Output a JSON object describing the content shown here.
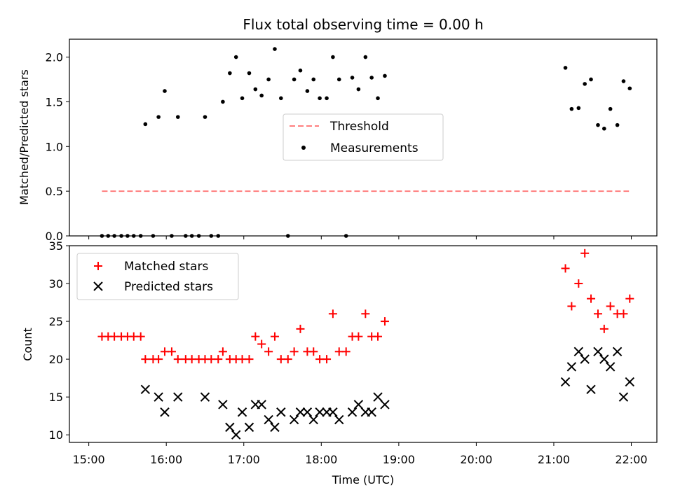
{
  "chart_data": [
    {
      "type": "scatter",
      "title": "Flux total observing time = 0.00 h",
      "xlabel": "",
      "ylabel": "Matched/Predicted stars",
      "ylim": [
        0,
        2.2
      ],
      "xlim_hours": [
        14.75,
        22.33
      ],
      "yticks": [
        "0.0",
        "0.5",
        "1.0",
        "1.5",
        "2.0"
      ],
      "ytick_values": [
        0,
        0.5,
        1.0,
        1.5,
        2.0
      ],
      "xticks_shown": false,
      "grid": false,
      "legend_placement": "center",
      "threshold": {
        "name": "Threshold",
        "color": "#ff7f7f",
        "style": "dashed",
        "y": 0.5,
        "x_start": 15.17,
        "x_end": 21.97
      },
      "series": [
        {
          "name": "Measurements",
          "color": "#000000",
          "marker": "dot",
          "x": [
            15.17,
            15.25,
            15.33,
            15.42,
            15.5,
            15.58,
            15.67,
            15.73,
            15.83,
            15.9,
            15.98,
            16.07,
            16.15,
            16.25,
            16.33,
            16.42,
            16.5,
            16.58,
            16.67,
            16.73,
            16.82,
            16.9,
            16.98,
            17.07,
            17.15,
            17.23,
            17.32,
            17.4,
            17.48,
            17.57,
            17.65,
            17.73,
            17.82,
            17.9,
            17.98,
            18.07,
            18.15,
            18.23,
            18.32,
            18.4,
            18.48,
            18.57,
            18.65,
            18.73,
            18.82,
            21.15,
            21.23,
            21.32,
            21.4,
            21.48,
            21.57,
            21.65,
            21.73,
            21.82,
            21.9,
            21.98
          ],
          "y": [
            0,
            0,
            0,
            0,
            0,
            0,
            0,
            1.25,
            0,
            1.33,
            1.62,
            0,
            1.33,
            0,
            0,
            0,
            1.33,
            0,
            0,
            1.5,
            1.82,
            2.0,
            1.54,
            1.82,
            1.64,
            1.57,
            1.75,
            2.09,
            1.54,
            0,
            1.75,
            1.85,
            1.62,
            1.75,
            1.54,
            1.54,
            2.0,
            1.75,
            0,
            1.77,
            1.64,
            2.0,
            1.77,
            1.54,
            1.79,
            1.88,
            1.42,
            1.43,
            1.7,
            1.75,
            1.24,
            1.2,
            1.42,
            1.24,
            1.73,
            1.65
          ]
        }
      ]
    },
    {
      "type": "scatter",
      "title": "",
      "xlabel": "Time (UTC)",
      "ylabel": "Count",
      "ylim": [
        9,
        35
      ],
      "xlim_hours": [
        14.75,
        22.33
      ],
      "yticks": [
        "10",
        "15",
        "20",
        "25",
        "30",
        "35"
      ],
      "ytick_values": [
        10,
        15,
        20,
        25,
        30,
        35
      ],
      "xticks": [
        "15:00",
        "16:00",
        "17:00",
        "18:00",
        "19:00",
        "20:00",
        "21:00",
        "22:00"
      ],
      "xtick_values": [
        15,
        16,
        17,
        18,
        19,
        20,
        21,
        22
      ],
      "grid": false,
      "legend_placement": "upper-left",
      "series": [
        {
          "name": "Matched stars",
          "color": "#ff0000",
          "marker": "plus",
          "x": [
            15.17,
            15.25,
            15.33,
            15.42,
            15.5,
            15.58,
            15.67,
            15.73,
            15.83,
            15.9,
            15.98,
            16.07,
            16.15,
            16.25,
            16.33,
            16.42,
            16.5,
            16.58,
            16.67,
            16.73,
            16.82,
            16.9,
            16.98,
            17.07,
            17.15,
            17.23,
            17.32,
            17.4,
            17.48,
            17.57,
            17.65,
            17.73,
            17.82,
            17.9,
            17.98,
            18.07,
            18.15,
            18.23,
            18.32,
            18.4,
            18.48,
            18.57,
            18.65,
            18.73,
            18.82,
            21.15,
            21.23,
            21.32,
            21.4,
            21.48,
            21.57,
            21.65,
            21.73,
            21.82,
            21.9,
            21.98
          ],
          "y": [
            23,
            23,
            23,
            23,
            23,
            23,
            23,
            20,
            20,
            20,
            21,
            21,
            20,
            20,
            20,
            20,
            20,
            20,
            20,
            21,
            20,
            20,
            20,
            20,
            23,
            22,
            21,
            23,
            20,
            20,
            21,
            24,
            21,
            21,
            20,
            20,
            26,
            21,
            21,
            23,
            23,
            26,
            23,
            23,
            25,
            32,
            27,
            30,
            34,
            28,
            26,
            24,
            27,
            26,
            26,
            28
          ]
        },
        {
          "name": "Predicted stars",
          "color": "#000000",
          "marker": "x",
          "x": [
            15.73,
            15.9,
            15.98,
            16.15,
            16.5,
            16.73,
            16.82,
            16.9,
            16.98,
            17.07,
            17.15,
            17.23,
            17.32,
            17.4,
            17.48,
            17.65,
            17.73,
            17.82,
            17.9,
            17.98,
            18.07,
            18.15,
            18.23,
            18.4,
            18.48,
            18.57,
            18.65,
            18.73,
            18.82,
            21.15,
            21.23,
            21.32,
            21.4,
            21.48,
            21.57,
            21.65,
            21.73,
            21.82,
            21.9,
            21.98
          ],
          "y": [
            16,
            15,
            13,
            15,
            15,
            14,
            11,
            10,
            13,
            11,
            14,
            14,
            12,
            11,
            13,
            12,
            13,
            13,
            12,
            13,
            13,
            13,
            12,
            13,
            14,
            13,
            13,
            15,
            14,
            17,
            19,
            21,
            20,
            16,
            21,
            20,
            19,
            21,
            15,
            17
          ]
        }
      ]
    }
  ]
}
